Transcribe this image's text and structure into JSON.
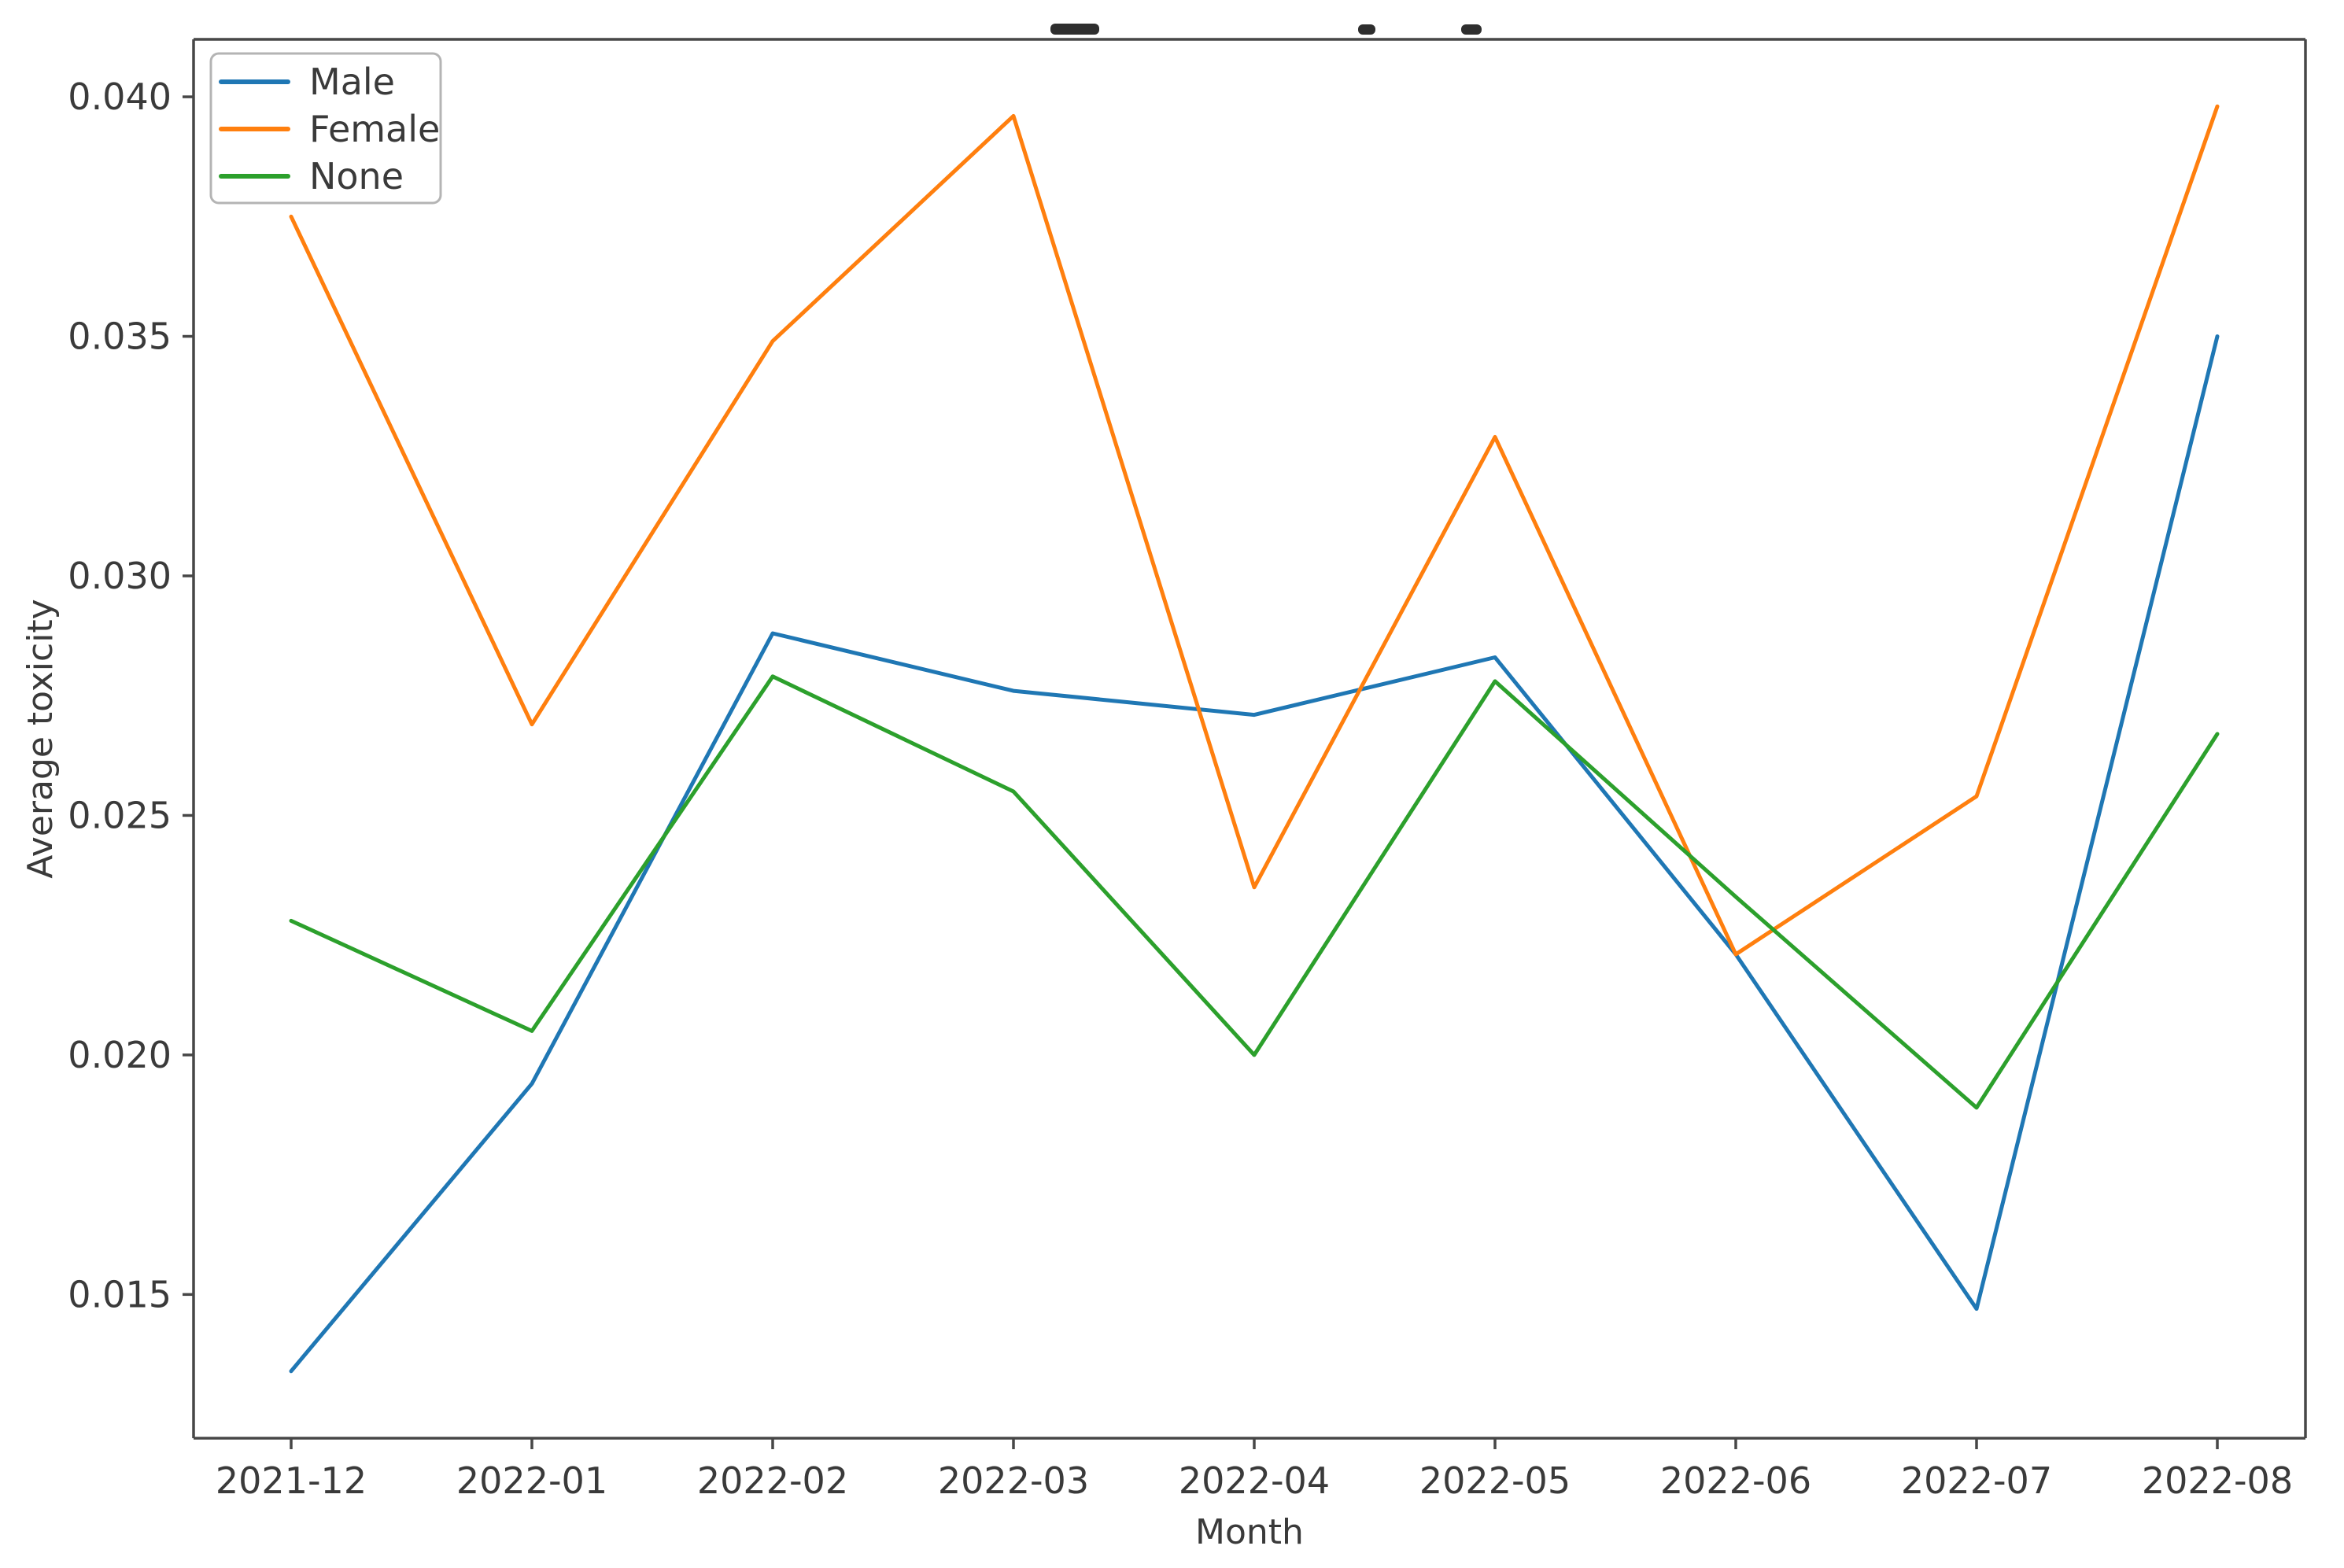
{
  "chart_data": {
    "type": "line",
    "xlabel": "Month",
    "ylabel": "Average toxicity",
    "categories": [
      "2021-12",
      "2022-01",
      "2022-02",
      "2022-03",
      "2022-04",
      "2022-05",
      "2022-06",
      "2022-07",
      "2022-08"
    ],
    "series": [
      {
        "name": "Male",
        "color": "#1f77b4",
        "values": [
          0.0134,
          0.0194,
          0.0288,
          0.0276,
          0.0271,
          0.0283,
          0.0221,
          0.0147,
          0.035
        ]
      },
      {
        "name": "Female",
        "color": "#ff7f0e",
        "values": [
          0.0375,
          0.0269,
          0.0349,
          0.0396,
          0.0235,
          0.0329,
          0.0221,
          0.0254,
          0.0398
        ]
      },
      {
        "name": "None",
        "color": "#2ca02c",
        "values": [
          0.0228,
          0.0205,
          0.0279,
          0.0255,
          0.02,
          0.0278,
          0.0233,
          0.0189,
          0.0267
        ]
      }
    ],
    "y_tick_labels": [
      "0.015",
      "0.020",
      "0.025",
      "0.030",
      "0.035",
      "0.040"
    ],
    "y_ticks": [
      0.015,
      0.02,
      0.025,
      0.03,
      0.035,
      0.04
    ],
    "ylim": [
      0.012,
      0.0412
    ],
    "grid": false,
    "legend_position": "upper left"
  }
}
